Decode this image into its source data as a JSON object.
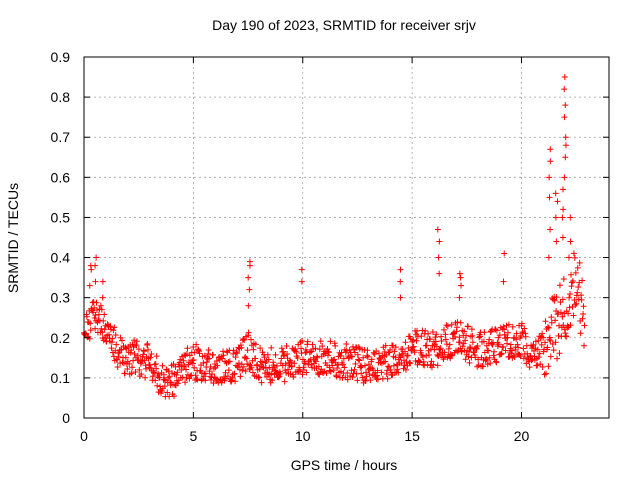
{
  "chart_data": {
    "type": "scatter",
    "title": "Day 190 of 2023, SRMTID for receiver srjv",
    "xlabel": "GPS time / hours",
    "ylabel": "SRMTID / TECUs",
    "xlim": [
      0,
      24
    ],
    "ylim": [
      0,
      0.9
    ],
    "xticks": [
      0,
      5,
      10,
      15,
      20
    ],
    "yticks": [
      0,
      0.1,
      0.2,
      0.3,
      0.4,
      0.5,
      0.6,
      0.7,
      0.8,
      0.9
    ],
    "xtick_labels": [
      "0",
      "5",
      "10",
      "15",
      "20"
    ],
    "ytick_labels": [
      "0",
      "0.1",
      "0.2",
      "0.3",
      "0.4",
      "0.5",
      "0.6",
      "0.7",
      "0.8",
      "0.9"
    ],
    "grid": true,
    "marker": "plus",
    "series": [
      {
        "name": "SRMTID",
        "color": "#ff0000",
        "profile": {
          "x": [
            0,
            0.3,
            0.6,
            1.0,
            1.5,
            2.0,
            2.5,
            3.0,
            3.5,
            4.0,
            4.5,
            5.0,
            6.0,
            7.0,
            7.5,
            8.0,
            9.0,
            10.0,
            11.0,
            12.0,
            13.0,
            14.0,
            14.5,
            15.0,
            16.0,
            17.0,
            18.0,
            19.0,
            20.0,
            20.5,
            21.0,
            21.5,
            22.0,
            22.5,
            22.9
          ],
          "y": [
            0.2,
            0.24,
            0.26,
            0.22,
            0.17,
            0.15,
            0.15,
            0.14,
            0.1,
            0.09,
            0.12,
            0.14,
            0.13,
            0.13,
            0.17,
            0.13,
            0.13,
            0.15,
            0.15,
            0.14,
            0.13,
            0.14,
            0.13,
            0.18,
            0.17,
            0.2,
            0.17,
            0.18,
            0.2,
            0.15,
            0.17,
            0.22,
            0.28,
            0.35,
            0.22
          ]
        },
        "spikes": [
          {
            "x": 0.3,
            "values": [
              0.33,
              0.37,
              0.38
            ]
          },
          {
            "x": 0.55,
            "values": [
              0.34,
              0.38,
              0.4
            ]
          },
          {
            "x": 0.9,
            "values": [
              0.3,
              0.34
            ]
          },
          {
            "x": 7.55,
            "values": [
              0.28,
              0.32,
              0.35,
              0.38,
              0.39
            ]
          },
          {
            "x": 10.0,
            "values": [
              0.34,
              0.37
            ]
          },
          {
            "x": 14.5,
            "values": [
              0.3,
              0.34,
              0.37
            ]
          },
          {
            "x": 16.2,
            "values": [
              0.36,
              0.4,
              0.44,
              0.47
            ]
          },
          {
            "x": 17.2,
            "values": [
              0.3,
              0.33,
              0.35,
              0.36
            ]
          },
          {
            "x": 19.2,
            "values": [
              0.34,
              0.41
            ]
          },
          {
            "x": 21.3,
            "values": [
              0.4,
              0.47,
              0.55,
              0.6,
              0.64,
              0.67
            ]
          },
          {
            "x": 21.6,
            "values": [
              0.44,
              0.5,
              0.54,
              0.56
            ]
          },
          {
            "x": 21.9,
            "values": [
              0.45,
              0.5,
              0.52,
              0.57
            ]
          },
          {
            "x": 22.0,
            "values": [
              0.6,
              0.65,
              0.68,
              0.7,
              0.75,
              0.78,
              0.82,
              0.85
            ]
          },
          {
            "x": 22.2,
            "values": [
              0.4,
              0.44,
              0.5
            ]
          }
        ]
      }
    ]
  }
}
